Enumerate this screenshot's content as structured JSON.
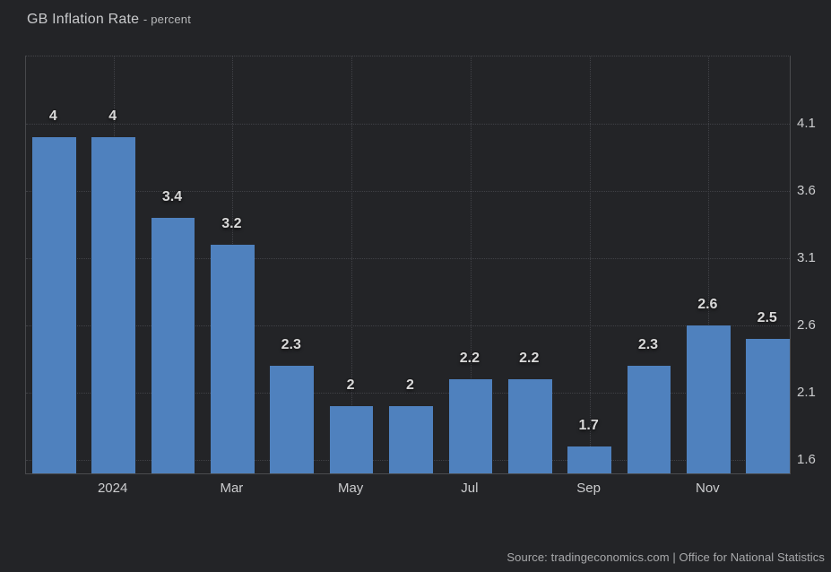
{
  "title": {
    "main": "GB Inflation Rate",
    "suffix": "- percent"
  },
  "source": "Source: tradingeconomics.com | Office for National Statistics",
  "colors": {
    "background": "#232427",
    "bar": "#4f81be",
    "grid": "#404146",
    "bar_label": "#d9d9d9",
    "axis_text": "#cbccce"
  },
  "chart_data": {
    "type": "bar",
    "title": "GB Inflation Rate",
    "unit": "percent",
    "values": [
      4,
      4,
      3.4,
      3.2,
      2.3,
      2,
      2,
      2.2,
      2.2,
      1.7,
      2.3,
      2.6,
      2.5
    ],
    "bar_labels": [
      "4",
      "4",
      "3.4",
      "3.2",
      "2.3",
      "2",
      "2",
      "2.2",
      "2.2",
      "1.7",
      "2.3",
      "2.6",
      "2.5"
    ],
    "x_ticks": [
      {
        "label": "2024",
        "bar_index": 1
      },
      {
        "label": "Mar",
        "bar_index": 3
      },
      {
        "label": "May",
        "bar_index": 5
      },
      {
        "label": "Jul",
        "bar_index": 7
      },
      {
        "label": "Sep",
        "bar_index": 9
      },
      {
        "label": "Nov",
        "bar_index": 11
      }
    ],
    "y_ticks": [
      4.1,
      3.6,
      3.1,
      2.6,
      2.1,
      1.6
    ],
    "ylim": [
      1.5,
      4.6
    ],
    "grid": "dotted",
    "legend": "none",
    "y_axis_side": "right"
  }
}
